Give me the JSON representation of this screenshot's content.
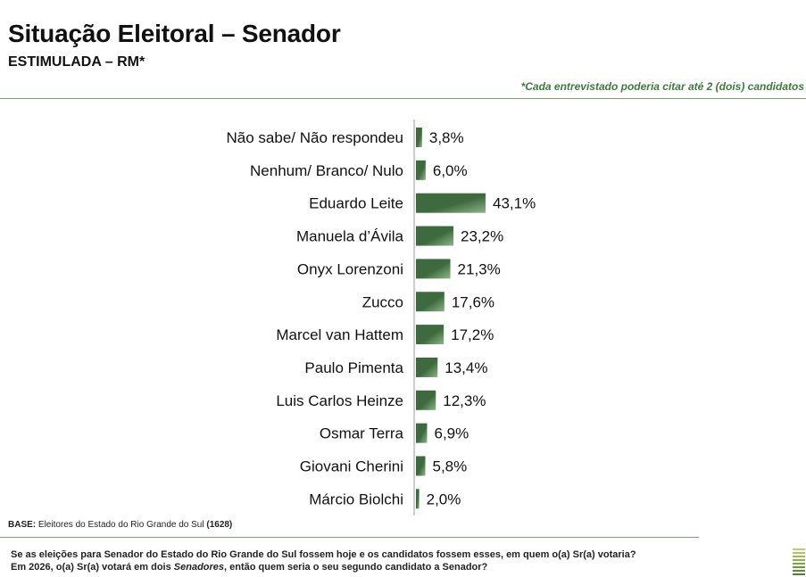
{
  "header": {
    "title": "Situação Eleitoral – Senador",
    "subtitle": "ESTIMULADA – RM*",
    "note": "*Cada entrevistado poderia citar até 2 (dois) candidatos"
  },
  "chart_data": {
    "type": "bar",
    "orientation": "horizontal",
    "categories": [
      "Não sabe/ Não respondeu",
      "Nenhum/ Branco/ Nulo",
      "Eduardo Leite",
      "Manuela d’Ávila",
      "Onyx Lorenzoni",
      "Zucco",
      "Marcel van Hattem",
      "Paulo Pimenta",
      "Luis Carlos Heinze",
      "Osmar Terra",
      "Giovani Cherini",
      "Márcio Biolchi"
    ],
    "values": [
      3.8,
      6.0,
      43.1,
      23.2,
      21.3,
      17.6,
      17.2,
      13.4,
      12.3,
      6.9,
      5.8,
      2.0
    ],
    "value_labels": [
      "3,8%",
      "6,0%",
      "43,1%",
      "23,2%",
      "21,3%",
      "17,6%",
      "17,2%",
      "13,4%",
      "12,3%",
      "6,9%",
      "5,8%",
      "2,0%"
    ],
    "bar_color": "#3d6b3d",
    "bar_highlight": "#8fb48a",
    "grid": false,
    "legend": "none"
  },
  "footer": {
    "base_label": "BASE:",
    "base_text": " Eleitores do Estado do Rio Grande do Sul ",
    "base_count": "(1628)",
    "question_line1": "Se as eleições para Senador do Estado do Rio Grande do Sul fossem hoje e os candidatos fossem esses, em quem o(a) Sr(a) votaria?",
    "question_line2_a": "Em 2026, o(a) Sr(a) votará em dois ",
    "question_line2_em": "Senadores",
    "question_line2_b": ", então quem seria o seu segundo candidato a Senador?"
  },
  "colors": {
    "accent_green": "#3f7a3c",
    "rule_green": "#7aa36a",
    "stack": [
      "#b7d26a",
      "#a8c95e",
      "#97bf52",
      "#86b447",
      "#75aa3d",
      "#649f34",
      "#55932c",
      "#478725"
    ]
  }
}
